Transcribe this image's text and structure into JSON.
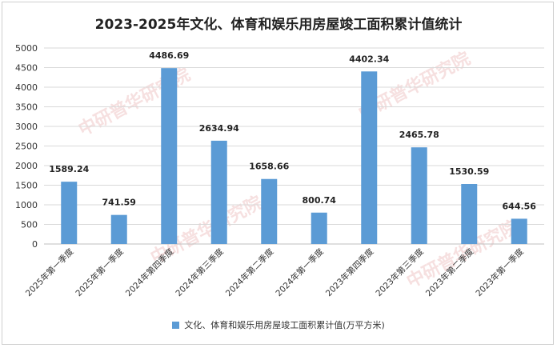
{
  "chart_data": {
    "type": "bar",
    "title": "2023-2025年文化、体育和娱乐用房屋竣工面积累计值统计",
    "categories": [
      "2025年第一季度",
      "2025年第一季度",
      "2024年第四季度",
      "2024年第三季度",
      "2024年第二季度",
      "2024年第一季度",
      "2023年第四季度",
      "2023年第三季度",
      "2023年第二季度",
      "2023年第一季度"
    ],
    "series": [
      {
        "name": "文化、体育和娱乐用房屋竣工面积累计值(万平方米)",
        "values": [
          1589.24,
          741.59,
          4486.69,
          2634.94,
          1658.66,
          800.74,
          4402.34,
          2465.78,
          1530.59,
          644.56
        ]
      }
    ],
    "value_labels": [
      "1589.24",
      "741.59",
      "4486.69",
      "2634.94",
      "1658.66",
      "800.74",
      "4402.34",
      "2465.78",
      "1530.59",
      "644.56"
    ],
    "y_ticks": [
      "0",
      "500",
      "1000",
      "1500",
      "2000",
      "2500",
      "3000",
      "3500",
      "4000",
      "4500",
      "5000"
    ],
    "ylim": [
      0,
      5000
    ],
    "grid": true,
    "legend_position": "bottom",
    "bar_color": "#5b9bd5",
    "watermark": "中研普华研究院 www.chinairn.com CIRN"
  }
}
